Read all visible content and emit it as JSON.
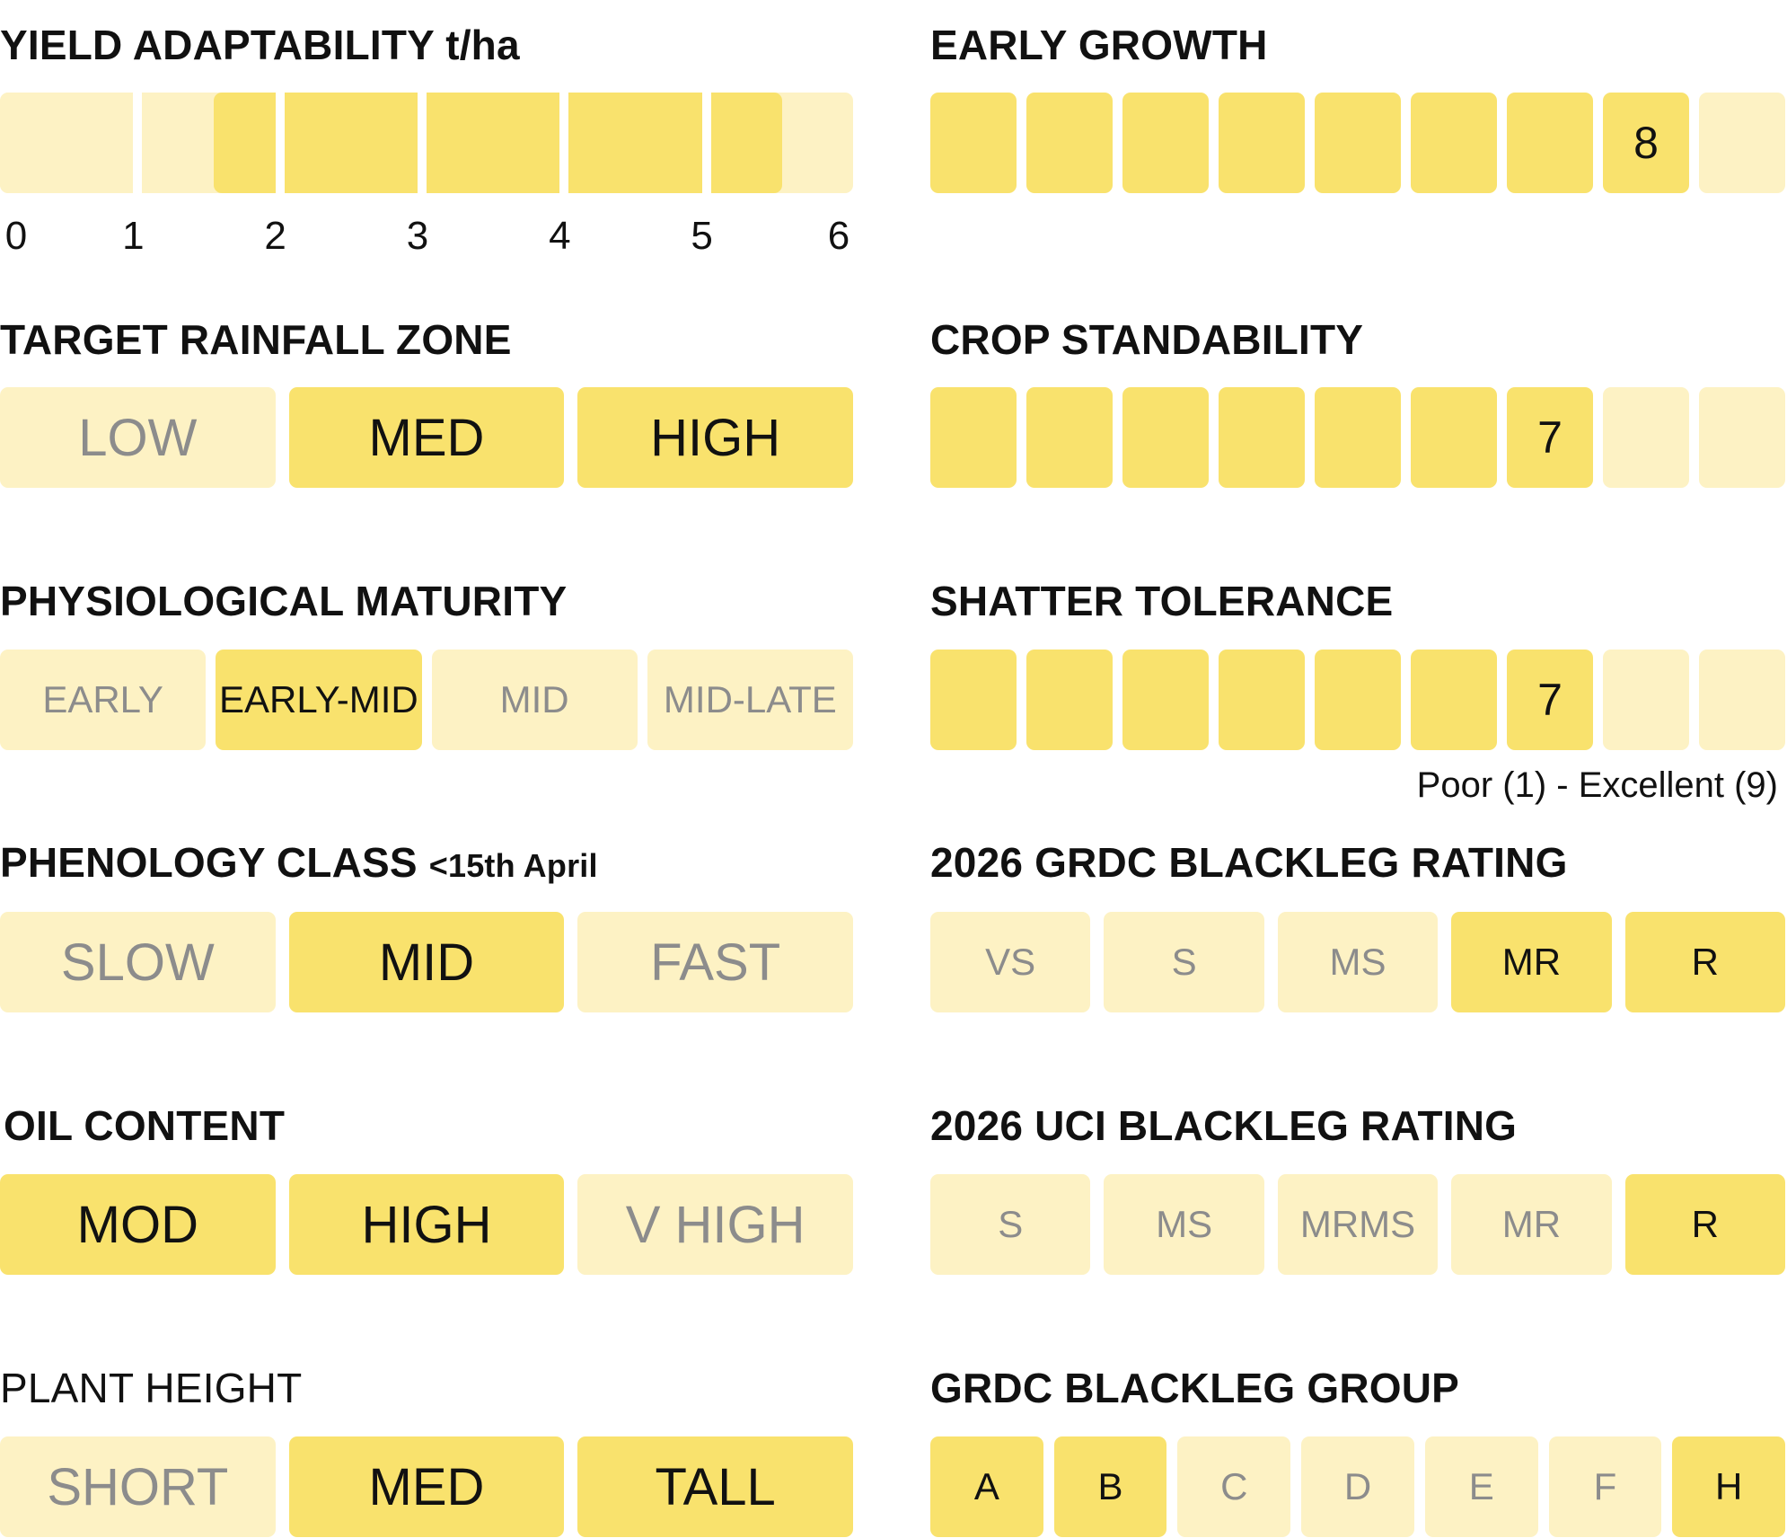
{
  "colors": {
    "selected": "#f9e26d",
    "unselected": "#fdf2c4",
    "selected_text": "#111111",
    "unselected_text": "#8c8c8c"
  },
  "yield": {
    "title": "YIELD ADAPTABILITY t/ha",
    "range_start": 1.5,
    "range_end": 5.5,
    "axis_max": 6,
    "ticks": [
      "0",
      "1",
      "2",
      "3",
      "4",
      "5",
      "6"
    ]
  },
  "rainfall": {
    "title": "TARGET RAINFALL ZONE",
    "options": [
      {
        "label": "LOW",
        "selected": false
      },
      {
        "label": "MED",
        "selected": true
      },
      {
        "label": "HIGH",
        "selected": true
      }
    ]
  },
  "maturity": {
    "title": "PHYSIOLOGICAL MATURITY",
    "options": [
      {
        "label": "EARLY",
        "selected": false
      },
      {
        "label": "EARLY-MID",
        "selected": true
      },
      {
        "label": "MID",
        "selected": false
      },
      {
        "label": "MID-LATE",
        "selected": false
      }
    ]
  },
  "phenology": {
    "title": "PHENOLOGY CLASS",
    "title_suffix": "<15th April",
    "options": [
      {
        "label": "SLOW",
        "selected": false
      },
      {
        "label": "MID",
        "selected": true
      },
      {
        "label": "FAST",
        "selected": false
      }
    ]
  },
  "oil": {
    "title": "OIL CONTENT",
    "options": [
      {
        "label": "MOD",
        "selected": true
      },
      {
        "label": "HIGH",
        "selected": true
      },
      {
        "label": "V HIGH",
        "selected": false
      }
    ]
  },
  "height": {
    "title": "PLANT HEIGHT",
    "options": [
      {
        "label": "SHORT",
        "selected": false
      },
      {
        "label": "MED",
        "selected": true
      },
      {
        "label": "TALL",
        "selected": true
      }
    ]
  },
  "early_growth": {
    "title": "EARLY GROWTH",
    "value": 8,
    "max": 9,
    "value_label": "8"
  },
  "standability": {
    "title": "CROP STANDABILITY",
    "value": 7,
    "max": 9,
    "value_label": "7"
  },
  "shatter": {
    "title": "SHATTER TOLERANCE",
    "value": 7,
    "max": 9,
    "value_label": "7"
  },
  "scale_note": "Poor (1) - Excellent (9)",
  "grdc_rating": {
    "title": "2026 GRDC BLACKLEG RATING",
    "options": [
      {
        "label": "VS",
        "selected": false
      },
      {
        "label": "S",
        "selected": false
      },
      {
        "label": "MS",
        "selected": false
      },
      {
        "label": "MR",
        "selected": true
      },
      {
        "label": "R",
        "selected": true
      }
    ]
  },
  "uci_rating": {
    "title": "2026 UCI BLACKLEG RATING",
    "options": [
      {
        "label": "S",
        "selected": false
      },
      {
        "label": "MS",
        "selected": false
      },
      {
        "label": "MRMS",
        "selected": false
      },
      {
        "label": "MR",
        "selected": false
      },
      {
        "label": "R",
        "selected": true
      }
    ]
  },
  "grdc_group": {
    "title": "GRDC BLACKLEG GROUP",
    "options": [
      {
        "label": "A",
        "selected": true
      },
      {
        "label": "B",
        "selected": true
      },
      {
        "label": "C",
        "selected": false
      },
      {
        "label": "D",
        "selected": false
      },
      {
        "label": "E",
        "selected": false
      },
      {
        "label": "F",
        "selected": false
      },
      {
        "label": "H",
        "selected": true
      }
    ]
  }
}
